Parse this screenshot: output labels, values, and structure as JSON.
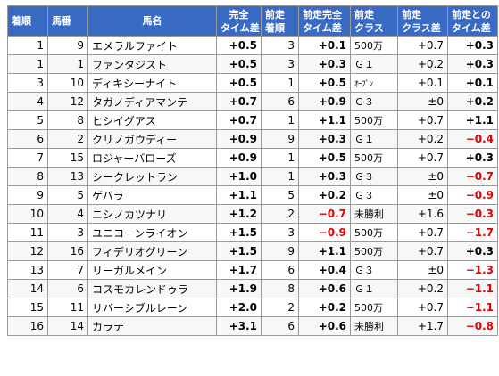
{
  "headers": {
    "finish": "着順",
    "number": "馬番",
    "horse": "馬名",
    "time_diff_1": "完全",
    "time_diff_2": "タイム差",
    "prev_finish_1": "前走",
    "prev_finish_2": "着順",
    "prev_time_1": "前走完全",
    "prev_time_2": "タイム差",
    "prev_class_1": "前走",
    "prev_class_2": "クラス",
    "class_diff_1": "前走",
    "class_diff_2": "クラス差",
    "diff_change_1": "前走との",
    "diff_change_2": "タイム差"
  },
  "rows": [
    {
      "finish": "1",
      "number": "9",
      "horse": "エメラルファイト",
      "time_diff": "+0.5",
      "prev_finish": "3",
      "prev_time": "+0.1",
      "prev_class": "500万",
      "class_diff": "+0.7",
      "diff_change": "+0.3",
      "neg_prev": false,
      "neg_change": false
    },
    {
      "finish": "1",
      "number": "1",
      "horse": "ファンタジスト",
      "time_diff": "+0.5",
      "prev_finish": "3",
      "prev_time": "+0.3",
      "prev_class": "Ｇ１",
      "class_diff": "+0.2",
      "diff_change": "+0.3",
      "neg_prev": false,
      "neg_change": false
    },
    {
      "finish": "3",
      "number": "10",
      "horse": "ディキシーナイト",
      "time_diff": "+0.5",
      "prev_finish": "1",
      "prev_time": "+0.5",
      "prev_class": "ｵｰﾌﾟﾝ",
      "class_diff": "+0.1",
      "diff_change": "+0.1",
      "neg_prev": false,
      "neg_change": false
    },
    {
      "finish": "4",
      "number": "12",
      "horse": "タガノディアマンテ",
      "time_diff": "+0.7",
      "prev_finish": "6",
      "prev_time": "+0.9",
      "prev_class": "Ｇ３",
      "class_diff": "±0",
      "diff_change": "+0.2",
      "neg_prev": false,
      "neg_change": false
    },
    {
      "finish": "5",
      "number": "8",
      "horse": "ヒシイグアス",
      "time_diff": "+0.7",
      "prev_finish": "1",
      "prev_time": "+1.1",
      "prev_class": "500万",
      "class_diff": "+0.7",
      "diff_change": "+1.1",
      "neg_prev": false,
      "neg_change": false
    },
    {
      "finish": "6",
      "number": "2",
      "horse": "クリノガウディー",
      "time_diff": "+0.9",
      "prev_finish": "9",
      "prev_time": "+0.3",
      "prev_class": "Ｇ１",
      "class_diff": "+0.2",
      "diff_change": "−0.4",
      "neg_prev": false,
      "neg_change": true
    },
    {
      "finish": "7",
      "number": "15",
      "horse": "ロジャーバローズ",
      "time_diff": "+0.9",
      "prev_finish": "1",
      "prev_time": "+0.5",
      "prev_class": "500万",
      "class_diff": "+0.7",
      "diff_change": "+0.3",
      "neg_prev": false,
      "neg_change": false
    },
    {
      "finish": "8",
      "number": "13",
      "horse": "シークレットラン",
      "time_diff": "+1.0",
      "prev_finish": "1",
      "prev_time": "+0.3",
      "prev_class": "Ｇ３",
      "class_diff": "±0",
      "diff_change": "−0.7",
      "neg_prev": false,
      "neg_change": true
    },
    {
      "finish": "9",
      "number": "5",
      "horse": "ゲバラ",
      "time_diff": "+1.1",
      "prev_finish": "5",
      "prev_time": "+0.2",
      "prev_class": "Ｇ３",
      "class_diff": "±0",
      "diff_change": "−0.9",
      "neg_prev": false,
      "neg_change": true
    },
    {
      "finish": "10",
      "number": "4",
      "horse": "ニシノカツナリ",
      "time_diff": "+1.2",
      "prev_finish": "2",
      "prev_time": "−0.7",
      "prev_class": "未勝利",
      "class_diff": "+1.6",
      "diff_change": "−0.3",
      "neg_prev": true,
      "neg_change": true
    },
    {
      "finish": "11",
      "number": "3",
      "horse": "ユニコーンライオン",
      "time_diff": "+1.5",
      "prev_finish": "3",
      "prev_time": "−0.9",
      "prev_class": "500万",
      "class_diff": "+0.7",
      "diff_change": "−1.7",
      "neg_prev": true,
      "neg_change": true
    },
    {
      "finish": "12",
      "number": "16",
      "horse": "フィデリオグリーン",
      "time_diff": "+1.5",
      "prev_finish": "9",
      "prev_time": "+1.1",
      "prev_class": "500万",
      "class_diff": "+0.7",
      "diff_change": "+0.3",
      "neg_prev": false,
      "neg_change": false
    },
    {
      "finish": "13",
      "number": "7",
      "horse": "リーガルメイン",
      "time_diff": "+1.7",
      "prev_finish": "6",
      "prev_time": "+0.4",
      "prev_class": "Ｇ３",
      "class_diff": "±0",
      "diff_change": "−1.3",
      "neg_prev": false,
      "neg_change": true
    },
    {
      "finish": "14",
      "number": "6",
      "horse": "コスモカレンドゥラ",
      "time_diff": "+1.9",
      "prev_finish": "8",
      "prev_time": "+0.6",
      "prev_class": "Ｇ１",
      "class_diff": "+0.2",
      "diff_change": "−1.1",
      "neg_prev": false,
      "neg_change": true
    },
    {
      "finish": "15",
      "number": "11",
      "horse": "リバーシブルレーン",
      "time_diff": "+2.0",
      "prev_finish": "2",
      "prev_time": "+0.2",
      "prev_class": "500万",
      "class_diff": "+0.7",
      "diff_change": "−1.1",
      "neg_prev": false,
      "neg_change": true
    },
    {
      "finish": "16",
      "number": "14",
      "horse": "カラテ",
      "time_diff": "+3.1",
      "prev_finish": "6",
      "prev_time": "+0.6",
      "prev_class": "未勝利",
      "class_diff": "+1.7",
      "diff_change": "−0.8",
      "neg_prev": false,
      "neg_change": true
    }
  ],
  "colors": {
    "header_bg": "#3a6bc4",
    "header_text": "#ffffff",
    "negative": "#e00000",
    "border": "#9a9a9a"
  }
}
